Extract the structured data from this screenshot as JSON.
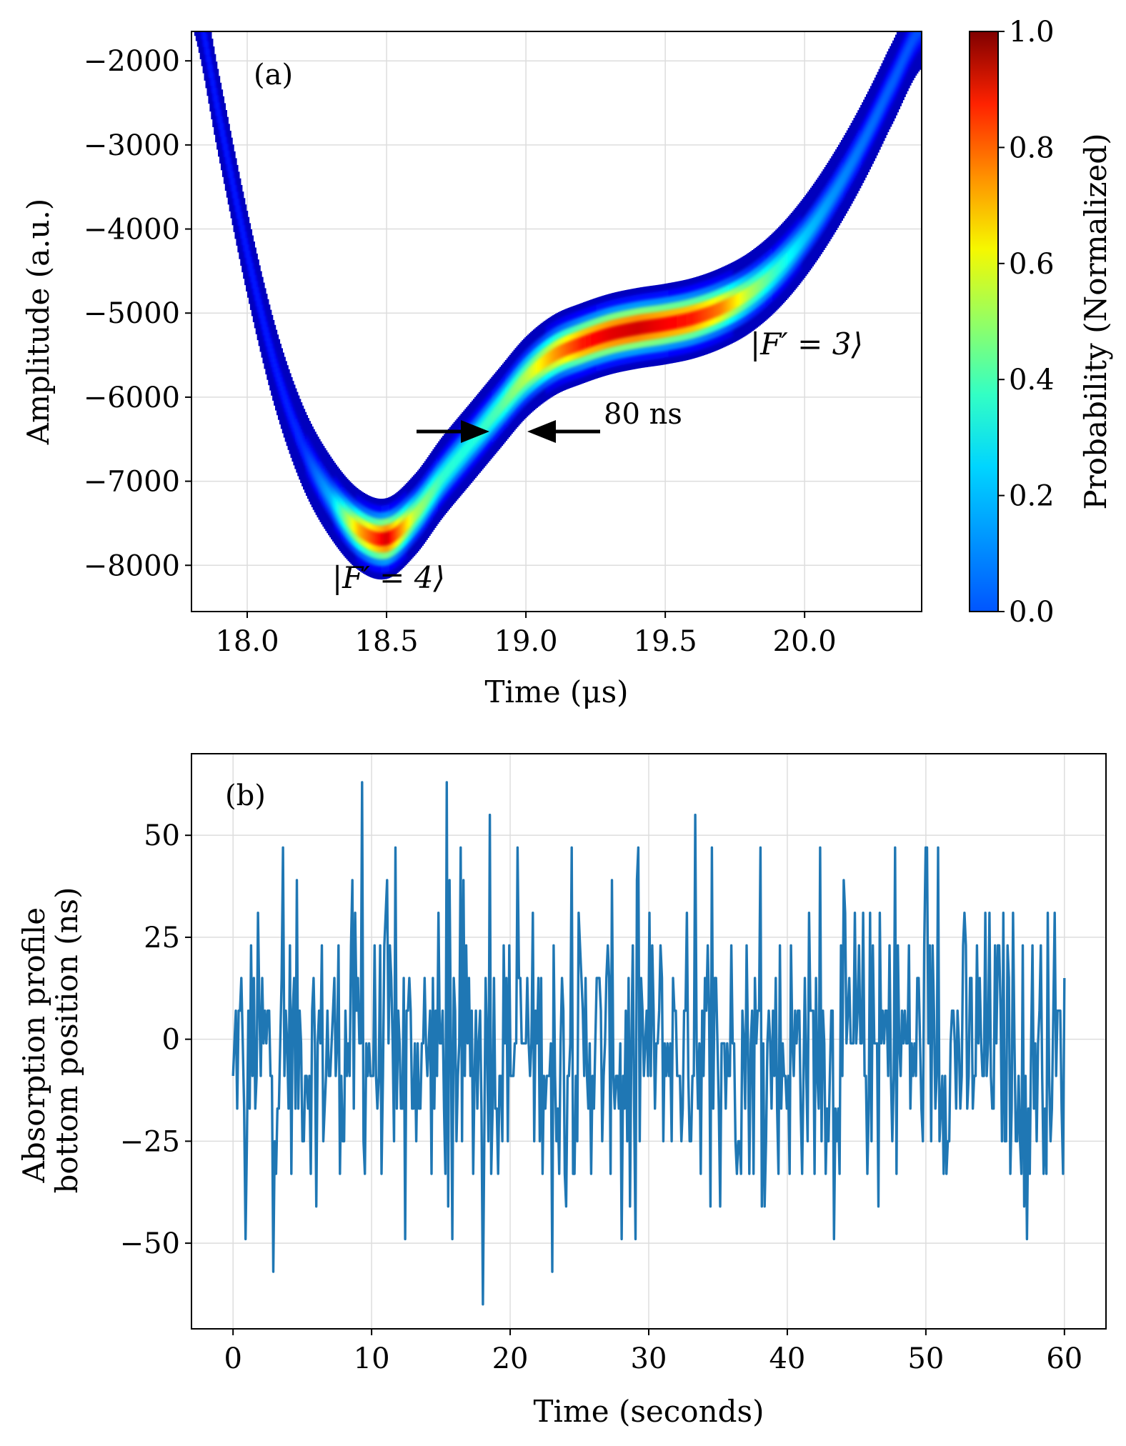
{
  "chart_data": [
    {
      "type": "heatmap",
      "panel_label": "(a)",
      "xlabel": "Time (μs)",
      "ylabel": "Amplitude (a.u.)",
      "xlim": [
        17.8,
        20.42
      ],
      "ylim": [
        -8550,
        -1650
      ],
      "x_ticks": [
        18.0,
        18.5,
        19.0,
        19.5,
        20.0
      ],
      "x_tick_labels": [
        "18.0",
        "18.5",
        "19.0",
        "19.5",
        "20.0"
      ],
      "y_ticks": [
        -2000,
        -3000,
        -4000,
        -5000,
        -6000,
        -7000,
        -8000
      ],
      "y_tick_labels": [
        "−2000",
        "−3000",
        "−4000",
        "−5000",
        "−6000",
        "−7000",
        "−8000"
      ],
      "grid": true,
      "colormap": "jet",
      "colorbar": {
        "label": "Probability (Normalized)",
        "range": [
          0.0,
          1.0
        ],
        "ticks": [
          0.0,
          0.2,
          0.4,
          0.6,
          0.8,
          1.0
        ],
        "tick_labels": [
          "0.0",
          "0.2",
          "0.4",
          "0.6",
          "0.8",
          "1.0"
        ]
      },
      "ridge_x": [
        17.8,
        17.9,
        18.0,
        18.1,
        18.2,
        18.3,
        18.4,
        18.5,
        18.6,
        18.7,
        18.8,
        18.9,
        19.0,
        19.1,
        19.2,
        19.3,
        19.4,
        19.5,
        19.6,
        19.7,
        19.8,
        19.9,
        20.0,
        20.1,
        20.2,
        20.3,
        20.42
      ],
      "ridge_y": [
        -1100,
        -2700,
        -4300,
        -5650,
        -6600,
        -7200,
        -7580,
        -7680,
        -7400,
        -6950,
        -6550,
        -6150,
        -5760,
        -5500,
        -5360,
        -5250,
        -5180,
        -5130,
        -5060,
        -4940,
        -4760,
        -4480,
        -4090,
        -3600,
        -3020,
        -2350,
        -1600
      ],
      "ridge_intensity": [
        0.15,
        0.15,
        0.15,
        0.15,
        0.17,
        0.3,
        0.7,
        0.92,
        0.55,
        0.42,
        0.4,
        0.45,
        0.55,
        0.72,
        0.85,
        0.9,
        0.92,
        0.88,
        0.85,
        0.75,
        0.55,
        0.42,
        0.32,
        0.27,
        0.24,
        0.22,
        0.2
      ],
      "annotations": [
        {
          "text": "|F′ = 4⟩",
          "x": 18.3,
          "y": -8200
        },
        {
          "text": "|F′ = 3⟩",
          "x": 19.8,
          "y": -5400
        },
        {
          "text": "80 ns",
          "x": 19.27,
          "y": -6300
        }
      ],
      "arrows": [
        {
          "from_x": 18.6,
          "to_x": 18.88,
          "y": -6400
        },
        {
          "from_x": 19.27,
          "to_x": 19.0,
          "y": -6400
        }
      ]
    },
    {
      "type": "line",
      "panel_label": "(b)",
      "xlabel": "Time (seconds)",
      "ylabel_lines": [
        "Absorption profile",
        "bottom position (ns)"
      ],
      "xlim": [
        -3,
        63
      ],
      "ylim": [
        -71,
        70
      ],
      "x_ticks": [
        0,
        10,
        20,
        30,
        40,
        50,
        60
      ],
      "x_tick_labels": [
        "0",
        "10",
        "20",
        "30",
        "40",
        "50",
        "60"
      ],
      "y_ticks": [
        50,
        25,
        0,
        -25,
        -50
      ],
      "y_tick_labels": [
        "50",
        "25",
        "0",
        "−25",
        "−50"
      ],
      "grid": true,
      "color": "#1f77b4",
      "x_start": 0,
      "x_end": 60,
      "point_count": 600,
      "levels": [
        -57,
        -49,
        -41,
        -33,
        -25,
        -17,
        -9,
        -1,
        7,
        15,
        23,
        31,
        39,
        47
      ],
      "spikes": [
        {
          "x": 9.3,
          "y": 63
        },
        {
          "x": 15.4,
          "y": 63
        },
        {
          "x": 18.5,
          "y": 55
        },
        {
          "x": 33.4,
          "y": 55
        },
        {
          "x": 50.9,
          "y": 47
        },
        {
          "x": 18.0,
          "y": -65
        },
        {
          "x": 2.9,
          "y": -57
        },
        {
          "x": 23.0,
          "y": -57
        },
        {
          "x": 0.9,
          "y": -49
        },
        {
          "x": 12.4,
          "y": -49
        },
        {
          "x": 15.8,
          "y": -49
        },
        {
          "x": 43.4,
          "y": -49
        },
        {
          "x": 57.3,
          "y": -49
        },
        {
          "x": 28.0,
          "y": -49
        },
        {
          "x": 29.0,
          "y": -49
        }
      ]
    }
  ]
}
